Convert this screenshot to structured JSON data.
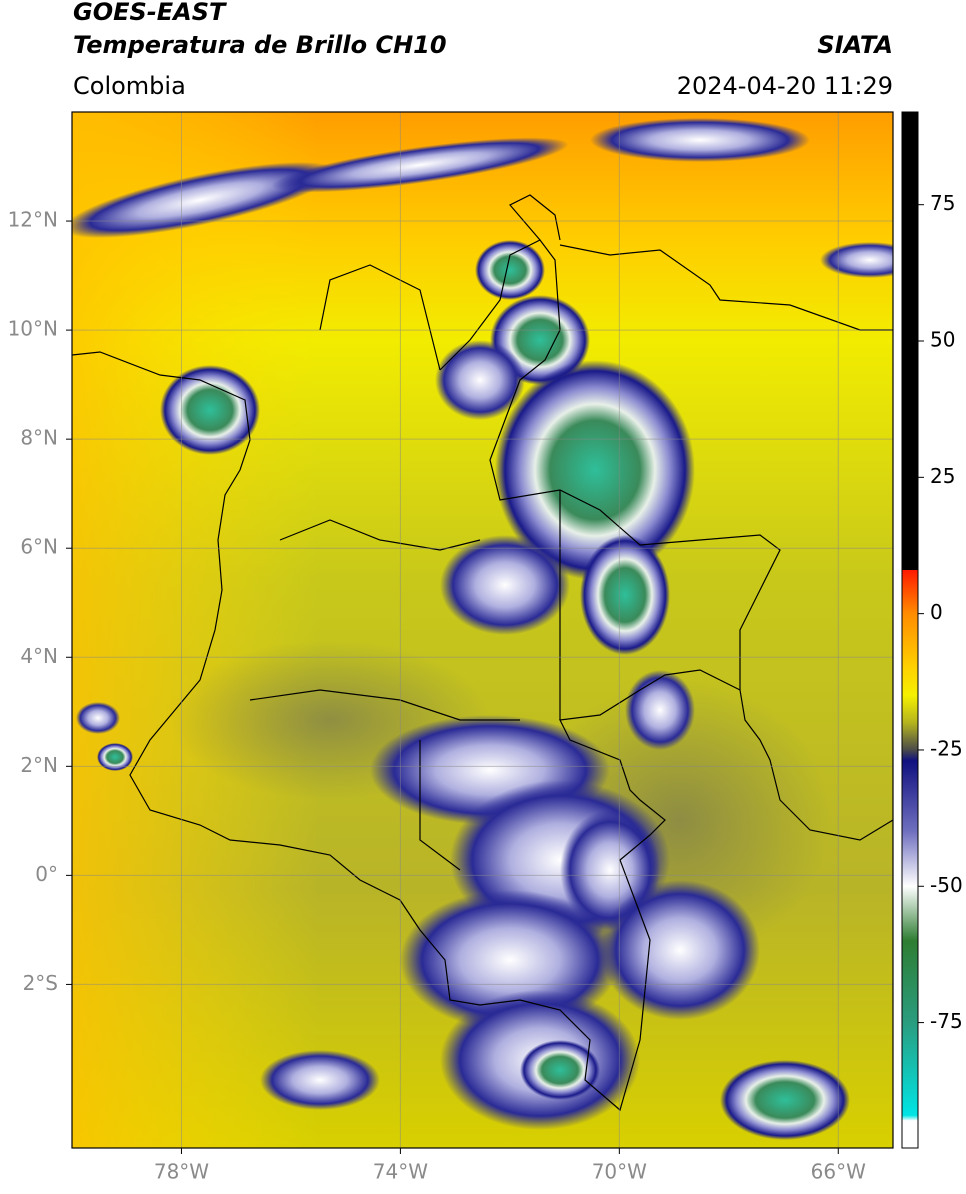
{
  "chart_data": {
    "type": "map",
    "title": "GOES-EAST",
    "subtitle": "Temperatura de Brillo CH10",
    "source": "SIATA",
    "region": "Colombia",
    "timestamp": "2024-04-20 11:29",
    "xlim": [
      -80,
      -65
    ],
    "ylim": [
      -5,
      14
    ],
    "xticks": [
      {
        "value": -78,
        "label": "78°W"
      },
      {
        "value": -74,
        "label": "74°W"
      },
      {
        "value": -70,
        "label": "70°W"
      },
      {
        "value": -66,
        "label": "66°W"
      }
    ],
    "yticks": [
      {
        "value": 12,
        "label": "12°N"
      },
      {
        "value": 10,
        "label": "10°N"
      },
      {
        "value": 8,
        "label": "8°N"
      },
      {
        "value": 6,
        "label": "6°N"
      },
      {
        "value": 4,
        "label": "4°N"
      },
      {
        "value": 2,
        "label": "2°N"
      },
      {
        "value": 0,
        "label": "0°"
      },
      {
        "value": -2,
        "label": "2°S"
      }
    ],
    "grid": true,
    "colorbar": {
      "clim": [
        -98,
        92
      ],
      "ticks": [
        75,
        50,
        25,
        0,
        -25,
        -50,
        -75
      ],
      "stops": [
        {
          "value": 92,
          "color": "#000000"
        },
        {
          "value": 8,
          "color": "#000000"
        },
        {
          "value": 8,
          "color": "#ff1a00"
        },
        {
          "value": 0,
          "color": "#ff8c00"
        },
        {
          "value": -10,
          "color": "#ffd200"
        },
        {
          "value": -15,
          "color": "#f5f000"
        },
        {
          "value": -20,
          "color": "#b4b41e"
        },
        {
          "value": -25,
          "color": "#4a4a4a"
        },
        {
          "value": -27,
          "color": "#101080"
        },
        {
          "value": -40,
          "color": "#7070c0"
        },
        {
          "value": -50,
          "color": "#ffffff"
        },
        {
          "value": -60,
          "color": "#2e7d32"
        },
        {
          "value": -75,
          "color": "#2a9d7f"
        },
        {
          "value": -92,
          "color": "#00e5e5"
        },
        {
          "value": -93,
          "color": "#ffffff"
        },
        {
          "value": -98,
          "color": "#ffffff"
        }
      ]
    }
  }
}
